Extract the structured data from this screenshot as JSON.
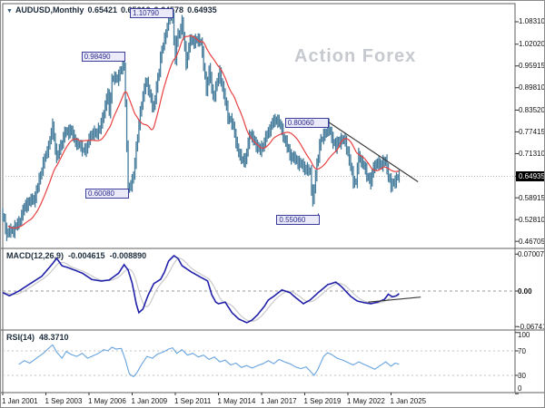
{
  "header": {
    "collapse_glyph": "▼",
    "symbol": "AUDUSD,Monthly",
    "open": "0.65421",
    "high": "0.65616",
    "low": "0.64578",
    "close": "0.64935"
  },
  "watermark": {
    "text": "Action Forex"
  },
  "panes": {
    "macd": {
      "name": "MACD(12,26,9)",
      "main_value": "-0.004615",
      "signal_value": "-0.008890"
    },
    "rsi": {
      "name": "RSI(14)",
      "value": "48.3710"
    }
  },
  "chart_data": {
    "type": "candlestick",
    "symbol": "AUDUSD",
    "timeframe": "Monthly",
    "title": "AUDUSD Monthly with MACD(12,26,9) and RSI(14)",
    "current_price": "0.64935",
    "price_axis_ticks": [
      "1.08310",
      "1.02020",
      "0.95915",
      "0.89810",
      "0.83520",
      "0.77415",
      "0.71310",
      "0.64935",
      "0.58915",
      "0.52810",
      "0.46705"
    ],
    "highlighted_price_tick": "0.64935",
    "time_axis_ticks": [
      {
        "m": 0,
        "label": "1 Jan 2001"
      },
      {
        "m": 32,
        "label": "1 Sep 2003"
      },
      {
        "m": 64,
        "label": "1 May 2006"
      },
      {
        "m": 96,
        "label": "1 Jan 2009"
      },
      {
        "m": 128,
        "label": "1 Sep 2011"
      },
      {
        "m": 160,
        "label": "1 May 2014"
      },
      {
        "m": 192,
        "label": "1 Jan 2017"
      },
      {
        "m": 224,
        "label": "1 Sep 2019"
      },
      {
        "m": 256,
        "label": "1 May 2022"
      },
      {
        "m": 288,
        "label": "1 Jan 2025"
      }
    ],
    "months_start": "2001-01",
    "months_total": 294,
    "price_monthly_anchors": [
      [
        0,
        0.54
      ],
      [
        3,
        0.49
      ],
      [
        8,
        0.5
      ],
      [
        12,
        0.52
      ],
      [
        17,
        0.57
      ],
      [
        24,
        0.59
      ],
      [
        29,
        0.67
      ],
      [
        35,
        0.75
      ],
      [
        37,
        0.79
      ],
      [
        40,
        0.7
      ],
      [
        46,
        0.77
      ],
      [
        50,
        0.78
      ],
      [
        55,
        0.74
      ],
      [
        62,
        0.72
      ],
      [
        64,
        0.76
      ],
      [
        72,
        0.78
      ],
      [
        78,
        0.88
      ],
      [
        79,
        0.83
      ],
      [
        81,
        0.92
      ],
      [
        86,
        0.93
      ],
      [
        90,
        0.97
      ],
      [
        93,
        0.61
      ],
      [
        97,
        0.65
      ],
      [
        101,
        0.8
      ],
      [
        106,
        0.92
      ],
      [
        112,
        0.84
      ],
      [
        117,
        0.98
      ],
      [
        123,
        1.09
      ],
      [
        126,
        1.1
      ],
      [
        128,
        0.97
      ],
      [
        129,
        1.03
      ],
      [
        133,
        1.08
      ],
      [
        136,
        0.97
      ],
      [
        139,
        1.03
      ],
      [
        147,
        1.03
      ],
      [
        151,
        0.89
      ],
      [
        153,
        0.95
      ],
      [
        156,
        0.87
      ],
      [
        161,
        0.94
      ],
      [
        167,
        0.82
      ],
      [
        171,
        0.79
      ],
      [
        175,
        0.71
      ],
      [
        180,
        0.69
      ],
      [
        183,
        0.77
      ],
      [
        191,
        0.72
      ],
      [
        200,
        0.8
      ],
      [
        204,
        0.81
      ],
      [
        213,
        0.71
      ],
      [
        222,
        0.68
      ],
      [
        228,
        0.66
      ],
      [
        230,
        0.58
      ],
      [
        232,
        0.65
      ],
      [
        235,
        0.74
      ],
      [
        239,
        0.77
      ],
      [
        241,
        0.79
      ],
      [
        247,
        0.73
      ],
      [
        249,
        0.75
      ],
      [
        254,
        0.75
      ],
      [
        260,
        0.64
      ],
      [
        262,
        0.63
      ],
      [
        264,
        0.71
      ],
      [
        273,
        0.63
      ],
      [
        275,
        0.68
      ],
      [
        284,
        0.69
      ],
      [
        288,
        0.62
      ],
      [
        291,
        0.64
      ],
      [
        294,
        0.649
      ]
    ],
    "ma_period": 20,
    "key_levels": [
      {
        "label": "1.10790",
        "price": 1.1079,
        "m": 126,
        "side": "left"
      },
      {
        "label": "0.98490",
        "price": 0.9849,
        "m": 90,
        "side": "left"
      },
      {
        "label": "0.80060",
        "price": 0.8006,
        "m": 241,
        "side": "left"
      },
      {
        "label": "0.60080",
        "price": 0.6008,
        "m": 93,
        "side": "left"
      },
      {
        "label": "0.55060",
        "price": 0.5506,
        "m": 230,
        "side": "below"
      }
    ],
    "trendline_price": [
      [
        242,
        0.8006
      ],
      [
        308,
        0.634
      ]
    ],
    "macd": {
      "axis_ticks": [
        0.070074,
        0.0,
        -0.067419
      ],
      "points": [
        [
          0,
          -0.003
        ],
        [
          5,
          -0.009
        ],
        [
          12,
          0.0
        ],
        [
          21,
          0.015
        ],
        [
          29,
          0.028
        ],
        [
          37,
          0.052
        ],
        [
          40,
          0.062
        ],
        [
          44,
          0.048
        ],
        [
          50,
          0.043
        ],
        [
          59,
          0.034
        ],
        [
          66,
          0.022
        ],
        [
          73,
          0.019
        ],
        [
          79,
          0.021
        ],
        [
          86,
          0.034
        ],
        [
          90,
          0.05
        ],
        [
          93,
          0.04
        ],
        [
          96,
          0.015
        ],
        [
          99,
          -0.024
        ],
        [
          101,
          -0.041
        ],
        [
          104,
          -0.034
        ],
        [
          108,
          -0.007
        ],
        [
          112,
          0.014
        ],
        [
          117,
          0.022
        ],
        [
          120,
          0.036
        ],
        [
          123,
          0.057
        ],
        [
          127,
          0.067
        ],
        [
          130,
          0.062
        ],
        [
          133,
          0.048
        ],
        [
          140,
          0.036
        ],
        [
          147,
          0.026
        ],
        [
          152,
          0.019
        ],
        [
          155,
          -0.007
        ],
        [
          158,
          -0.021
        ],
        [
          160,
          -0.024
        ],
        [
          165,
          -0.021
        ],
        [
          170,
          -0.041
        ],
        [
          175,
          -0.053
        ],
        [
          181,
          -0.06
        ],
        [
          185,
          -0.055
        ],
        [
          189,
          -0.045
        ],
        [
          194,
          -0.029
        ],
        [
          197,
          -0.017
        ],
        [
          201,
          -0.01
        ],
        [
          207,
          0.002
        ],
        [
          213,
          -0.003
        ],
        [
          218,
          -0.014
        ],
        [
          223,
          -0.024
        ],
        [
          228,
          -0.017
        ],
        [
          234,
          -0.003
        ],
        [
          241,
          0.012
        ],
        [
          247,
          0.017
        ],
        [
          251,
          0.009
        ],
        [
          258,
          -0.01
        ],
        [
          263,
          -0.019
        ],
        [
          268,
          -0.022
        ],
        [
          273,
          -0.024
        ],
        [
          278,
          -0.021
        ],
        [
          283,
          -0.016
        ],
        [
          286,
          -0.006
        ],
        [
          289,
          -0.011
        ],
        [
          292,
          -0.009
        ],
        [
          294,
          -0.0046
        ]
      ],
      "signal_period": 9,
      "trendline": [
        [
          271,
          -0.021
        ],
        [
          310,
          -0.0115
        ]
      ]
    },
    "rsi": {
      "axis_ticks": [
        100,
        70,
        30,
        0
      ],
      "overbought": 70,
      "oversold": 30,
      "points": [
        [
          12,
          48
        ],
        [
          16,
          54
        ],
        [
          20,
          50
        ],
        [
          25,
          58
        ],
        [
          30,
          66
        ],
        [
          34,
          74
        ],
        [
          37,
          80
        ],
        [
          40,
          68
        ],
        [
          44,
          58
        ],
        [
          47,
          69
        ],
        [
          51,
          64
        ],
        [
          55,
          61
        ],
        [
          59,
          66
        ],
        [
          63,
          58
        ],
        [
          67,
          62
        ],
        [
          71,
          66
        ],
        [
          75,
          72
        ],
        [
          78,
          70
        ],
        [
          81,
          76
        ],
        [
          84,
          73
        ],
        [
          88,
          74
        ],
        [
          91,
          55
        ],
        [
          94,
          32
        ],
        [
          97,
          28
        ],
        [
          100,
          36
        ],
        [
          103,
          48
        ],
        [
          107,
          61
        ],
        [
          111,
          58
        ],
        [
          115,
          65
        ],
        [
          119,
          68
        ],
        [
          123,
          73
        ],
        [
          126,
          75
        ],
        [
          129,
          66
        ],
        [
          133,
          72
        ],
        [
          137,
          63
        ],
        [
          141,
          66
        ],
        [
          145,
          60
        ],
        [
          149,
          63
        ],
        [
          153,
          56
        ],
        [
          157,
          60
        ],
        [
          161,
          52
        ],
        [
          165,
          55
        ],
        [
          169,
          47
        ],
        [
          173,
          50
        ],
        [
          177,
          43
        ],
        [
          181,
          46
        ],
        [
          185,
          42
        ],
        [
          189,
          46
        ],
        [
          193,
          49
        ],
        [
          197,
          54
        ],
        [
          201,
          49
        ],
        [
          205,
          56
        ],
        [
          209,
          52
        ],
        [
          213,
          49
        ],
        [
          217,
          44
        ],
        [
          221,
          41
        ],
        [
          225,
          44
        ],
        [
          228,
          37
        ],
        [
          231,
          30
        ],
        [
          234,
          41
        ],
        [
          238,
          61
        ],
        [
          241,
          67
        ],
        [
          244,
          64
        ],
        [
          248,
          58
        ],
        [
          252,
          55
        ],
        [
          256,
          51
        ],
        [
          260,
          47
        ],
        [
          264,
          52
        ],
        [
          268,
          48
        ],
        [
          272,
          44
        ],
        [
          276,
          40
        ],
        [
          280,
          46
        ],
        [
          284,
          52
        ],
        [
          288,
          45
        ],
        [
          291,
          50
        ],
        [
          294,
          48.37
        ]
      ]
    },
    "colors": {
      "bars": "#457b9b",
      "ma": "#e84040",
      "macd": "#2020a8",
      "signal": "#c9c9c9",
      "rsi": "#66a3de",
      "trendline": "#3a3a3a",
      "label_box_border": "#3c3c9c",
      "frame": "#5f5f5f",
      "current_price_line": "#bcbcbc"
    }
  }
}
